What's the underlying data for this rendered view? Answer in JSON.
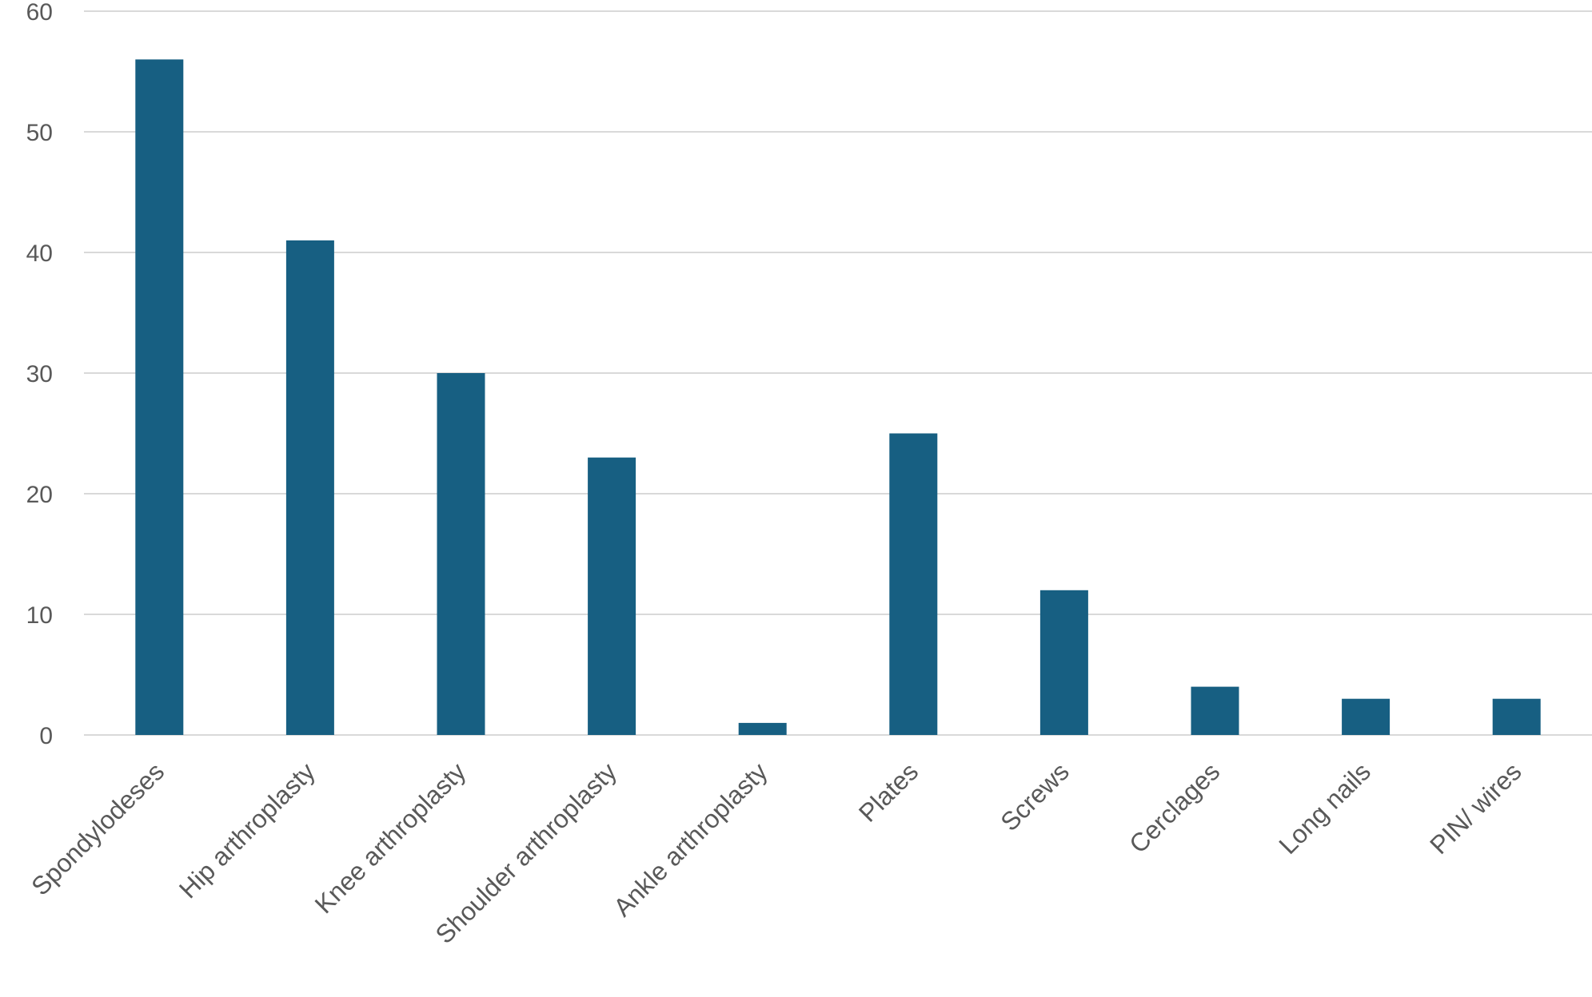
{
  "chart_data": {
    "type": "bar",
    "title": "",
    "xlabel": "",
    "ylabel": "",
    "categories": [
      "Spondylodeses",
      "Hip arthroplasty",
      "Knee arthroplasty",
      "Shoulder arthroplasty",
      "Ankle arthroplasty",
      "Plates",
      "Screws",
      "Cerclages",
      "Long nails",
      "PIN/ wires"
    ],
    "values": [
      56,
      41,
      30,
      23,
      1,
      25,
      12,
      4,
      3,
      3
    ],
    "ylim": [
      0,
      60
    ],
    "yticks": [
      "0",
      "10",
      "20",
      "30",
      "40",
      "50",
      "60"
    ],
    "grid": true,
    "legend": "none",
    "bar_color": "#175f82",
    "grid_color": "#d9d9d9",
    "text_color": "#595959"
  }
}
